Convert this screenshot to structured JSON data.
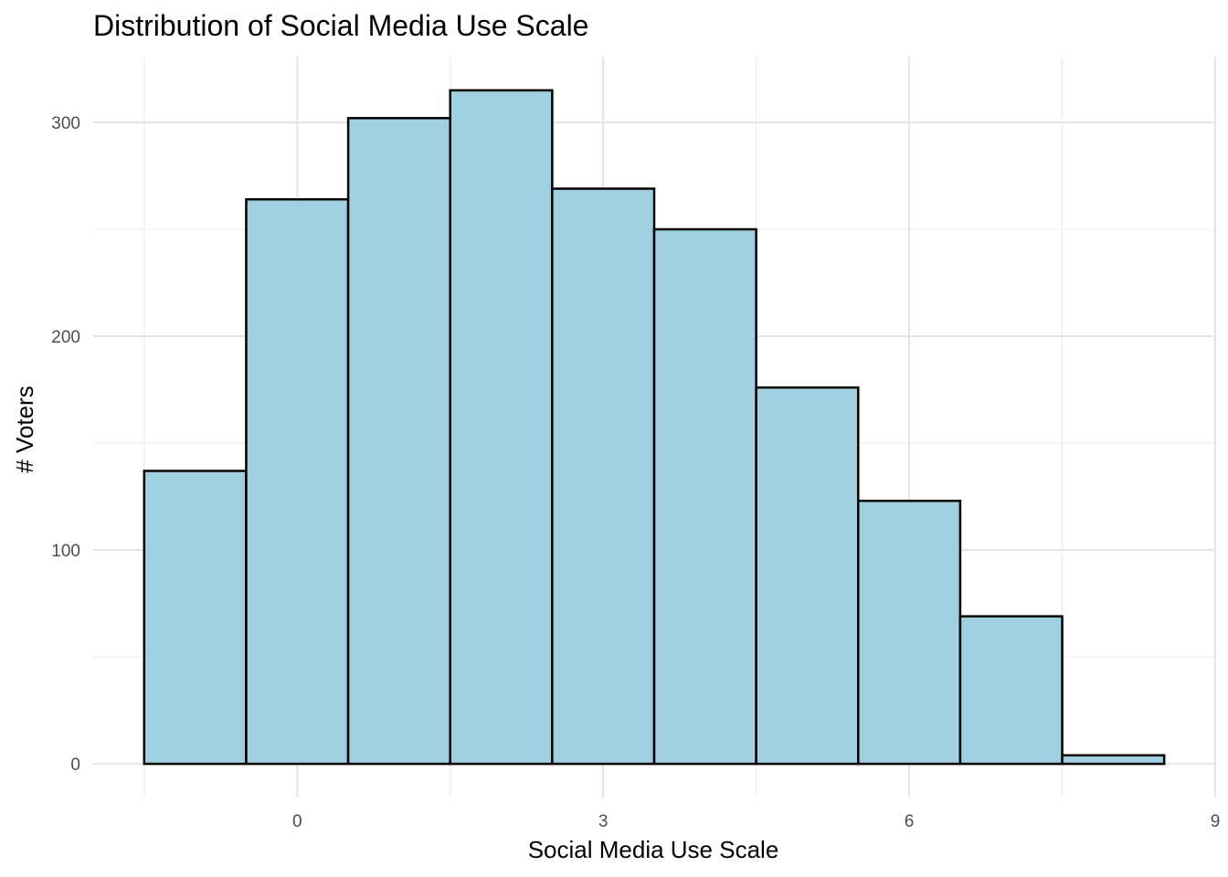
{
  "chart_data": {
    "type": "bar",
    "title": "Distribution of Social Media Use Scale",
    "xlabel": "Social Media Use Scale",
    "ylabel": "# Voters",
    "bins": [
      {
        "x_start": -1.5,
        "x_end": -0.5,
        "count": 137
      },
      {
        "x_start": -0.5,
        "x_end": 0.5,
        "count": 264
      },
      {
        "x_start": 0.5,
        "x_end": 1.5,
        "count": 302
      },
      {
        "x_start": 1.5,
        "x_end": 2.5,
        "count": 315
      },
      {
        "x_start": 2.5,
        "x_end": 3.5,
        "count": 269
      },
      {
        "x_start": 3.5,
        "x_end": 4.5,
        "count": 250
      },
      {
        "x_start": 4.5,
        "x_end": 5.5,
        "count": 176
      },
      {
        "x_start": 5.5,
        "x_end": 6.5,
        "count": 123
      },
      {
        "x_start": 6.5,
        "x_end": 7.5,
        "count": 69
      },
      {
        "x_start": 7.5,
        "x_end": 8.5,
        "count": 4
      }
    ],
    "xlim": [
      -2.0,
      9.0
    ],
    "ylim": [
      -15.75,
      330.75
    ],
    "x_ticks": [
      0,
      3,
      6,
      9
    ],
    "x_tick_labels": [
      "0",
      "3",
      "6",
      "9"
    ],
    "y_ticks": [
      0,
      100,
      200,
      300
    ],
    "y_tick_labels": [
      "0",
      "100",
      "200",
      "300"
    ],
    "x_minor_ticks": [
      -1.5,
      1.5,
      4.5,
      7.5
    ],
    "y_minor_ticks": [
      50,
      150,
      250
    ],
    "grid": true,
    "legend": "none",
    "colors": {
      "bar_fill": "#a0cfe0",
      "bar_outline": "#000000",
      "grid": "#e5e5e5"
    }
  }
}
